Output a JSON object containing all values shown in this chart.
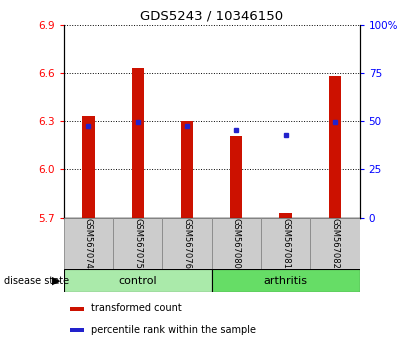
{
  "title": "GDS5243 / 10346150",
  "samples": [
    "GSM567074",
    "GSM567075",
    "GSM567076",
    "GSM567080",
    "GSM567081",
    "GSM567082"
  ],
  "red_bar_tops": [
    6.33,
    6.63,
    6.3,
    6.21,
    5.73,
    6.58
  ],
  "blue_y": [
    6.27,
    6.295,
    6.27,
    6.245,
    6.215,
    6.295
  ],
  "bar_base": 5.7,
  "ylim_left": [
    5.7,
    6.9
  ],
  "ylim_right": [
    0,
    100
  ],
  "left_ticks": [
    5.7,
    6.0,
    6.3,
    6.6,
    6.9
  ],
  "right_ticks": [
    0,
    25,
    50,
    75,
    100
  ],
  "right_tick_labels": [
    "0",
    "25",
    "50",
    "75",
    "100%"
  ],
  "groups": [
    {
      "label": "control",
      "indices": [
        0,
        1,
        2
      ],
      "color": "#aaeaaa"
    },
    {
      "label": "arthritis",
      "indices": [
        3,
        4,
        5
      ],
      "color": "#66dd66"
    }
  ],
  "bar_color": "#cc1100",
  "blue_color": "#2222cc",
  "bar_width": 0.25,
  "sample_box_color": "#cccccc",
  "legend_items": [
    {
      "color": "#cc1100",
      "label": "transformed count"
    },
    {
      "color": "#2222cc",
      "label": "percentile rank within the sample"
    }
  ]
}
